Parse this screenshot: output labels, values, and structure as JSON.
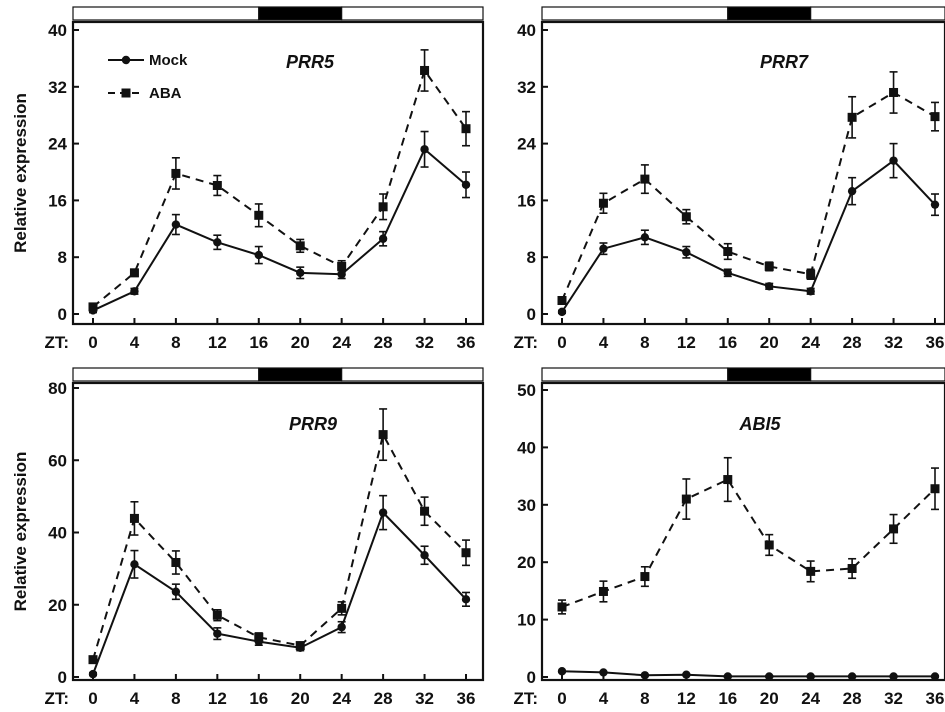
{
  "xaxis_prefix": "ZT:",
  "colors": {
    "ink": "#111111",
    "dark_bar": "#000000",
    "light_bar": "#ffffff"
  },
  "chart_data": [
    {
      "type": "line",
      "title": "PRR5",
      "xlabel": "",
      "ylabel": "Relative expression",
      "x": [
        0,
        4,
        8,
        12,
        16,
        20,
        24,
        28,
        32,
        36
      ],
      "ylim": [
        0,
        40
      ],
      "yticks": [
        0,
        8,
        16,
        24,
        32,
        40
      ],
      "grid": false,
      "legend_position": "top-left",
      "light_dark_bar": [
        {
          "from": 0,
          "to": 16,
          "state": "light"
        },
        {
          "from": 16,
          "to": 24,
          "state": "dark"
        },
        {
          "from": 24,
          "to": 36,
          "state": "light"
        }
      ],
      "series": [
        {
          "name": "Mock",
          "marker": "circle",
          "line": "solid",
          "values": [
            0.5,
            3.2,
            12.6,
            10.1,
            8.3,
            5.8,
            5.6,
            10.6,
            23.2,
            18.2
          ],
          "errors": [
            0.3,
            0.4,
            1.4,
            1.0,
            1.2,
            0.8,
            0.6,
            1.0,
            2.5,
            1.8
          ]
        },
        {
          "name": "ABA",
          "marker": "square",
          "line": "dashed",
          "values": [
            1.0,
            5.8,
            19.8,
            18.1,
            13.9,
            9.6,
            6.7,
            15.1,
            34.3,
            26.1
          ],
          "errors": [
            0.3,
            0.5,
            2.2,
            1.4,
            1.6,
            0.9,
            0.8,
            1.8,
            2.9,
            2.4
          ]
        }
      ]
    },
    {
      "type": "line",
      "title": "PRR7",
      "xlabel": "",
      "ylabel": "",
      "x": [
        0,
        4,
        8,
        12,
        16,
        20,
        24,
        28,
        32,
        36
      ],
      "ylim": [
        0,
        40
      ],
      "yticks": [
        0,
        8,
        16,
        24,
        32,
        40
      ],
      "grid": false,
      "light_dark_bar": [
        {
          "from": 0,
          "to": 16,
          "state": "light"
        },
        {
          "from": 16,
          "to": 24,
          "state": "dark"
        },
        {
          "from": 24,
          "to": 36,
          "state": "light"
        }
      ],
      "series": [
        {
          "name": "Mock",
          "marker": "circle",
          "line": "solid",
          "values": [
            0.3,
            9.2,
            10.8,
            8.7,
            5.8,
            3.9,
            3.2,
            17.3,
            21.6,
            15.4
          ],
          "errors": [
            0.2,
            0.8,
            1.0,
            0.8,
            0.5,
            0.4,
            0.4,
            1.9,
            2.4,
            1.5
          ]
        },
        {
          "name": "ABA",
          "marker": "square",
          "line": "dashed",
          "values": [
            1.9,
            15.6,
            19.0,
            13.7,
            8.8,
            6.7,
            5.6,
            27.7,
            31.2,
            27.8
          ],
          "errors": [
            0.5,
            1.4,
            2.0,
            1.0,
            1.1,
            0.6,
            0.7,
            2.9,
            2.9,
            2.0
          ]
        }
      ]
    },
    {
      "type": "line",
      "title": "PRR9",
      "xlabel": "",
      "ylabel": "Relative expression",
      "x": [
        0,
        4,
        8,
        12,
        16,
        20,
        24,
        28,
        32,
        36
      ],
      "ylim": [
        0,
        80
      ],
      "yticks": [
        0,
        20,
        40,
        60,
        80
      ],
      "grid": false,
      "light_dark_bar": [
        {
          "from": 0,
          "to": 16,
          "state": "light"
        },
        {
          "from": 16,
          "to": 24,
          "state": "dark"
        },
        {
          "from": 24,
          "to": 36,
          "state": "light"
        }
      ],
      "series": [
        {
          "name": "Mock",
          "marker": "circle",
          "line": "solid",
          "values": [
            0.8,
            31.2,
            23.6,
            12.0,
            9.8,
            8.1,
            13.8,
            45.5,
            33.7,
            21.5
          ],
          "errors": [
            0.4,
            3.8,
            2.1,
            1.6,
            1.0,
            0.8,
            1.5,
            4.7,
            2.5,
            1.9
          ]
        },
        {
          "name": "ABA",
          "marker": "square",
          "line": "dashed",
          "values": [
            4.8,
            43.9,
            31.7,
            17.1,
            11.0,
            8.7,
            19.0,
            67.1,
            45.9,
            34.4
          ],
          "errors": [
            0.8,
            4.6,
            3.2,
            1.5,
            1.2,
            0.9,
            1.8,
            7.1,
            3.9,
            3.5
          ]
        }
      ]
    },
    {
      "type": "line",
      "title": "ABI5",
      "xlabel": "",
      "ylabel": "",
      "x": [
        0,
        4,
        8,
        12,
        16,
        20,
        24,
        28,
        32,
        36
      ],
      "ylim": [
        0,
        50
      ],
      "yticks": [
        0,
        10,
        20,
        30,
        40,
        50
      ],
      "grid": false,
      "light_dark_bar": [
        {
          "from": 0,
          "to": 16,
          "state": "light"
        },
        {
          "from": 16,
          "to": 24,
          "state": "dark"
        },
        {
          "from": 24,
          "to": 36,
          "state": "light"
        }
      ],
      "series": [
        {
          "name": "Mock",
          "marker": "circle",
          "line": "solid",
          "values": [
            1.0,
            0.8,
            0.3,
            0.4,
            0.1,
            0.1,
            0.1,
            0.1,
            0.1,
            0.1
          ],
          "errors": [
            0.1,
            0.1,
            0.1,
            0.1,
            0.1,
            0.1,
            0.1,
            0.1,
            0.1,
            0.1
          ]
        },
        {
          "name": "ABA",
          "marker": "square",
          "line": "dashed",
          "values": [
            12.2,
            14.9,
            17.5,
            31.0,
            34.4,
            23.0,
            18.4,
            18.9,
            25.8,
            32.8
          ],
          "errors": [
            1.2,
            1.8,
            1.7,
            3.5,
            3.8,
            1.8,
            1.8,
            1.7,
            2.5,
            3.6
          ]
        }
      ]
    }
  ]
}
